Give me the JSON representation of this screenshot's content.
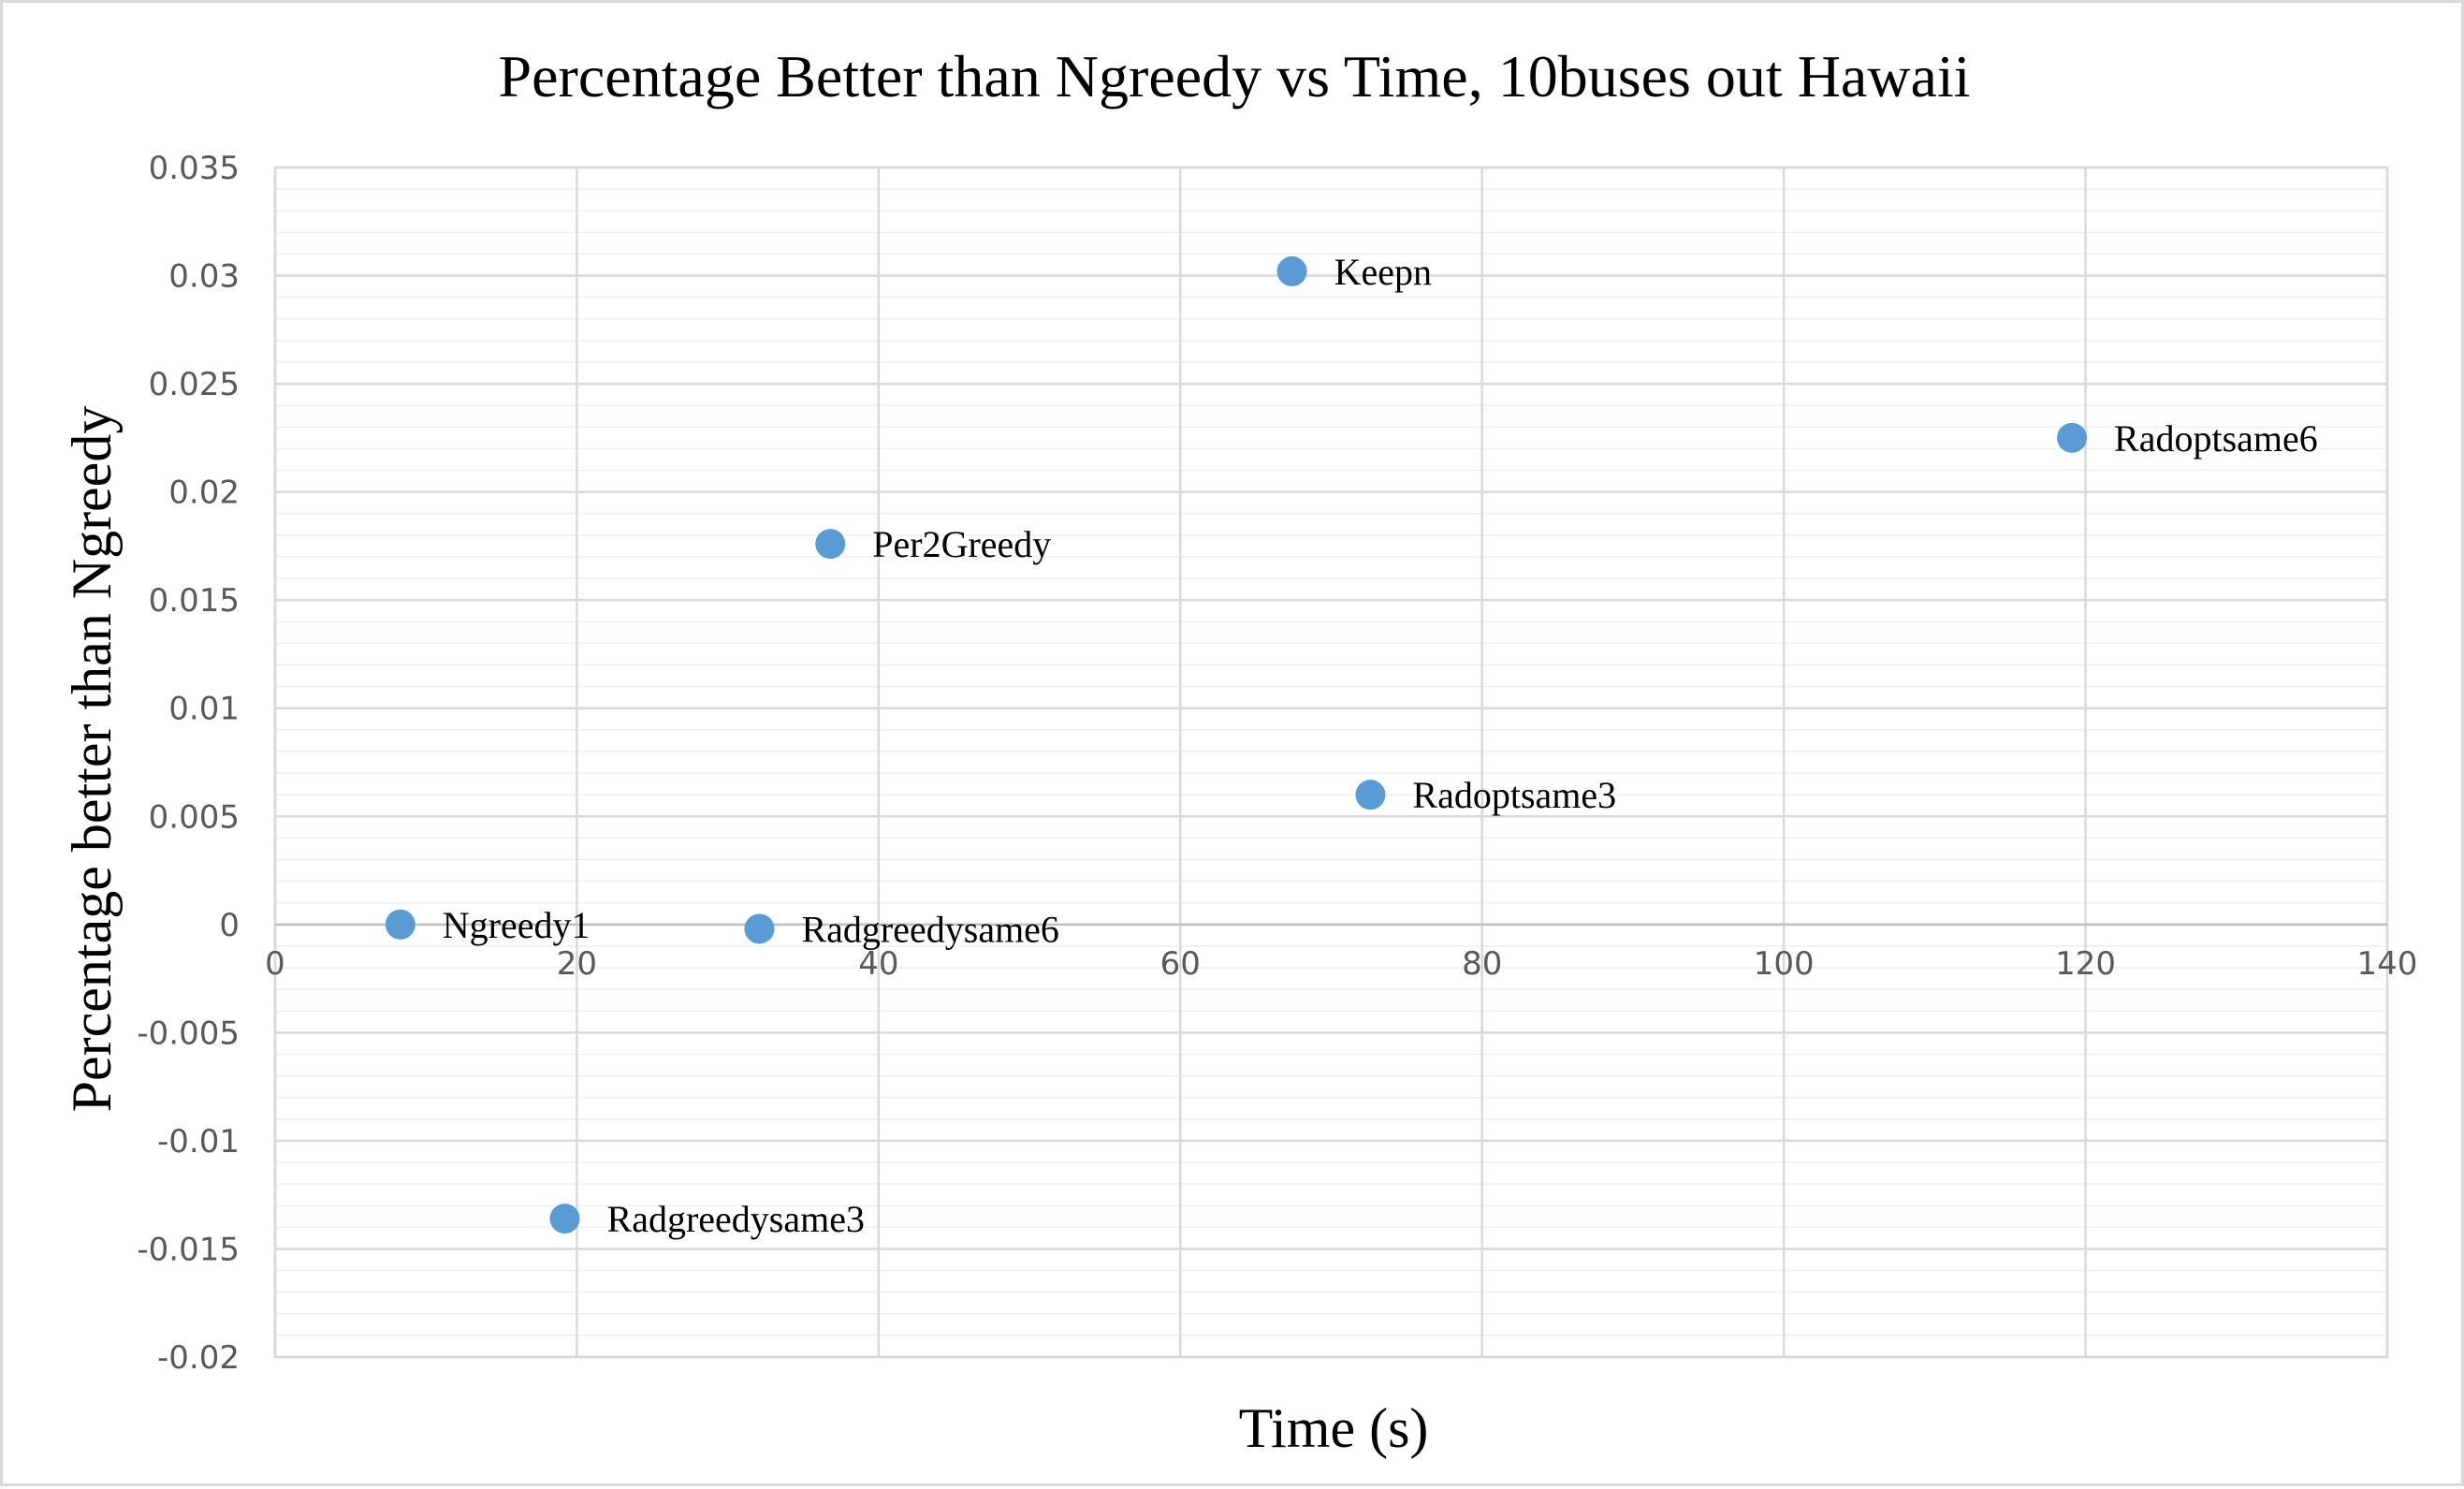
{
  "chart_data": {
    "type": "scatter",
    "title": "Percentage Better than Ngreedy vs Time, 10buses out Hawaii",
    "xlabel": "Time (s)",
    "ylabel": "Percentage better than Ngreedy",
    "xlim": [
      0,
      140
    ],
    "ylim": [
      -0.02,
      0.035
    ],
    "x_ticks": [
      0,
      20,
      40,
      60,
      80,
      100,
      120,
      140
    ],
    "y_ticks": [
      -0.02,
      -0.015,
      -0.01,
      -0.005,
      0,
      0.005,
      0.01,
      0.015,
      0.02,
      0.025,
      0.03,
      0.035
    ],
    "y_tick_labels": [
      "-0.02",
      "-0.015",
      "-0.01",
      "-0.005",
      "0",
      "0.005",
      "0.01",
      "0.015",
      "0.02",
      "0.025",
      "0.03",
      "0.035"
    ],
    "grid": true,
    "legend": "none",
    "marker_color": "#5b9bd5",
    "points": [
      {
        "label": "Ngreedy1",
        "x": 8.3,
        "y": 0.0
      },
      {
        "label": "Radgreedysame3",
        "x": 19.2,
        "y": -0.0136
      },
      {
        "label": "Radgreedysame6",
        "x": 32.1,
        "y": -0.0002
      },
      {
        "label": "Per2Greedy",
        "x": 36.8,
        "y": 0.0176
      },
      {
        "label": "Keepn",
        "x": 67.4,
        "y": 0.0302
      },
      {
        "label": "Radoptsame3",
        "x": 72.6,
        "y": 0.006
      },
      {
        "label": "Radoptsame6",
        "x": 119.1,
        "y": 0.0225
      }
    ]
  }
}
